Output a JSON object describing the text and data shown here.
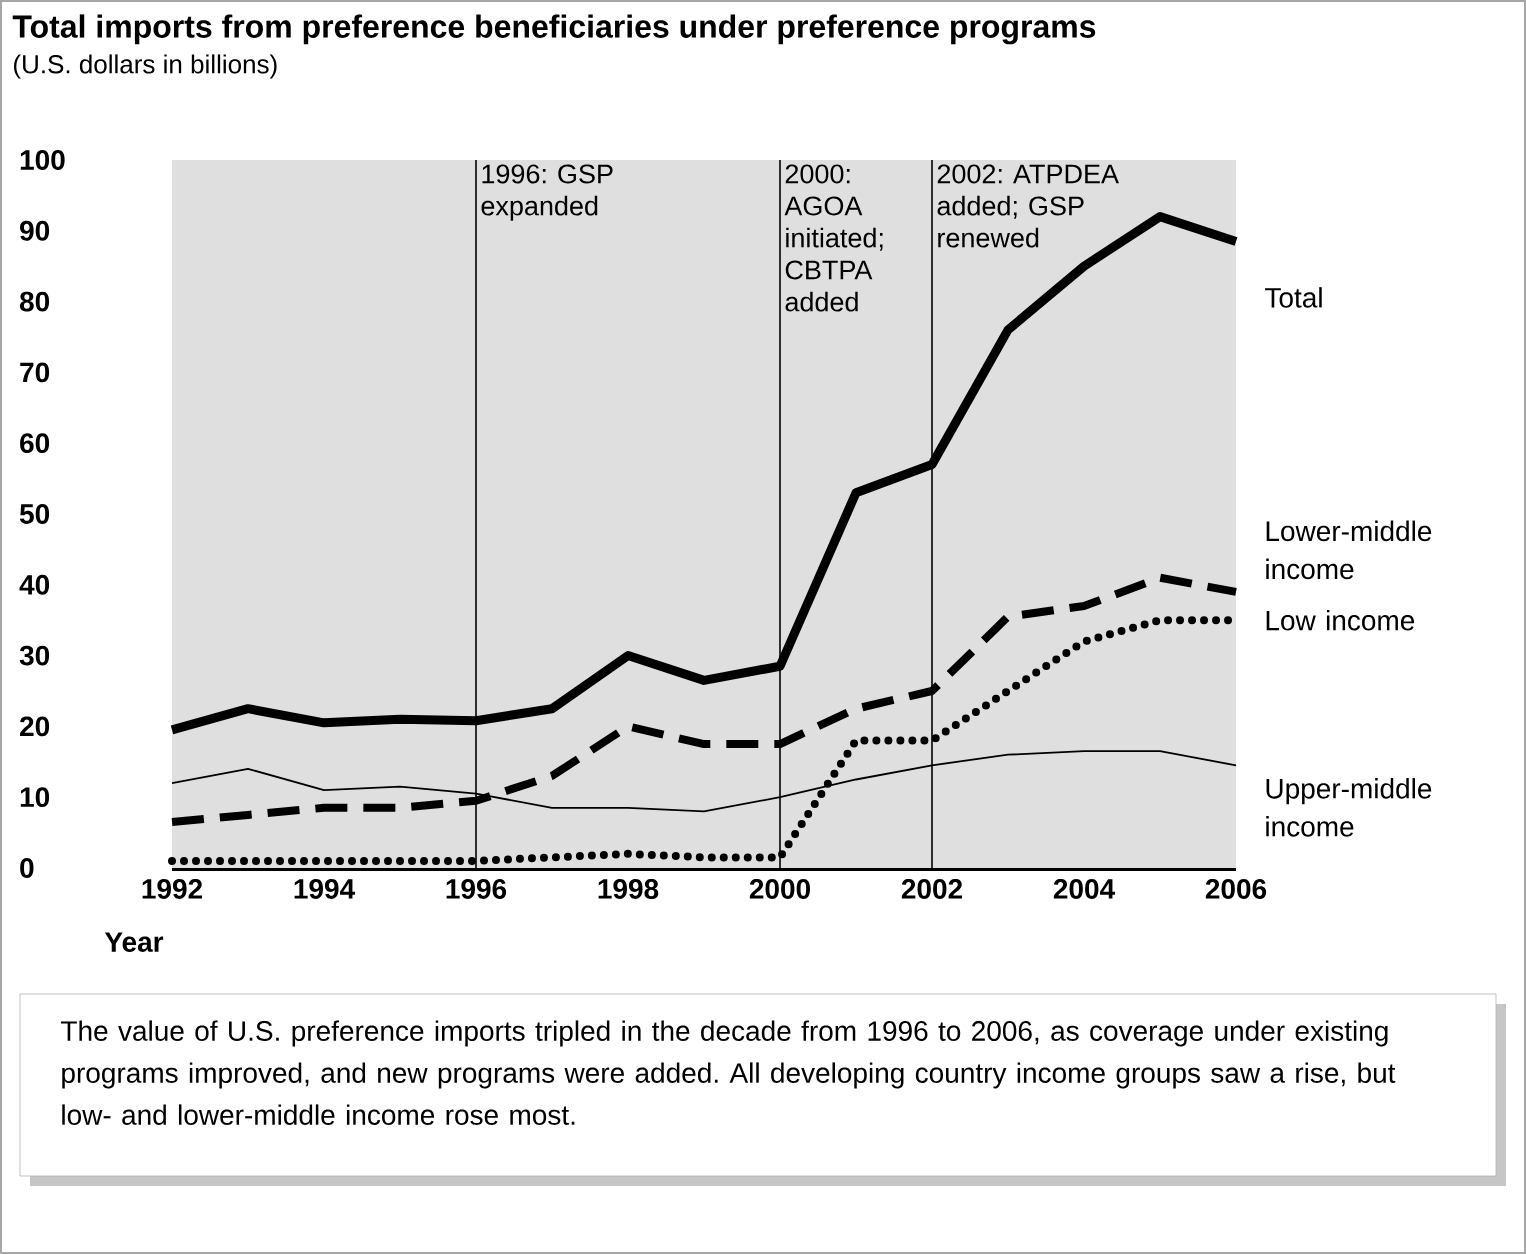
{
  "chart_data": {
    "type": "line",
    "title": "Total imports from preference beneficiaries under preference programs",
    "subtitle": "(U.S. dollars in billions)",
    "xlabel": "Year",
    "x": [
      1992,
      1993,
      1994,
      1995,
      1996,
      1997,
      1998,
      1999,
      2000,
      2001,
      2002,
      2003,
      2004,
      2005,
      2006
    ],
    "series": [
      {
        "name": "Total",
        "color": "#000000",
        "line_style": "solid",
        "values": [
          19.5,
          22.5,
          20.5,
          21,
          20.8,
          22.5,
          30,
          26.5,
          28.5,
          53,
          57,
          76,
          85,
          92,
          88.5
        ]
      },
      {
        "name": "Lower-middle income",
        "color": "#000000",
        "line_style": "dashed",
        "values": [
          6.5,
          7.5,
          8.5,
          8.5,
          9.5,
          13,
          20,
          17.5,
          17.5,
          22.5,
          25,
          35.5,
          37,
          41,
          39
        ]
      },
      {
        "name": "Low income",
        "color": "#000000",
        "line_style": "dotted",
        "values": [
          1,
          1,
          1,
          1,
          1,
          1.5,
          2,
          1.5,
          1.5,
          18,
          18,
          25,
          32,
          35,
          35
        ]
      },
      {
        "name": "Upper-middle income",
        "color": "#000000",
        "line_style": "solid",
        "values": [
          12,
          14,
          11,
          11.5,
          10.5,
          8.5,
          8.5,
          8,
          10,
          12.5,
          14.5,
          16,
          16.5,
          16.5,
          14.5
        ]
      }
    ],
    "xlim": [
      1992,
      2006
    ],
    "xticks": [
      1992,
      1994,
      1996,
      1998,
      2000,
      2002,
      2004,
      2006
    ],
    "ylim": [
      0,
      100
    ],
    "yticks": [
      0,
      10,
      20,
      30,
      40,
      50,
      60,
      70,
      80,
      90,
      100
    ],
    "ref_lines": [
      {
        "axis": "x",
        "value": 1996,
        "label": "1996: GSP expanded",
        "color": "#000000"
      },
      {
        "axis": "x",
        "value": 2000,
        "label": "2000: AGOA initiated; CBTPA added",
        "color": "#000000"
      },
      {
        "axis": "x",
        "value": 2002,
        "label": "2002: ATPDEA added; GSP renewed",
        "color": "#000000"
      }
    ],
    "grid": false,
    "annotations": [
      "The value of U.S. preference imports tripled in the decade from 1996 to 2006, as coverage under existing programs improved, and new programs were added. All developing country income groups saw a rise, but low- and lower-middle income rose most."
    ]
  }
}
